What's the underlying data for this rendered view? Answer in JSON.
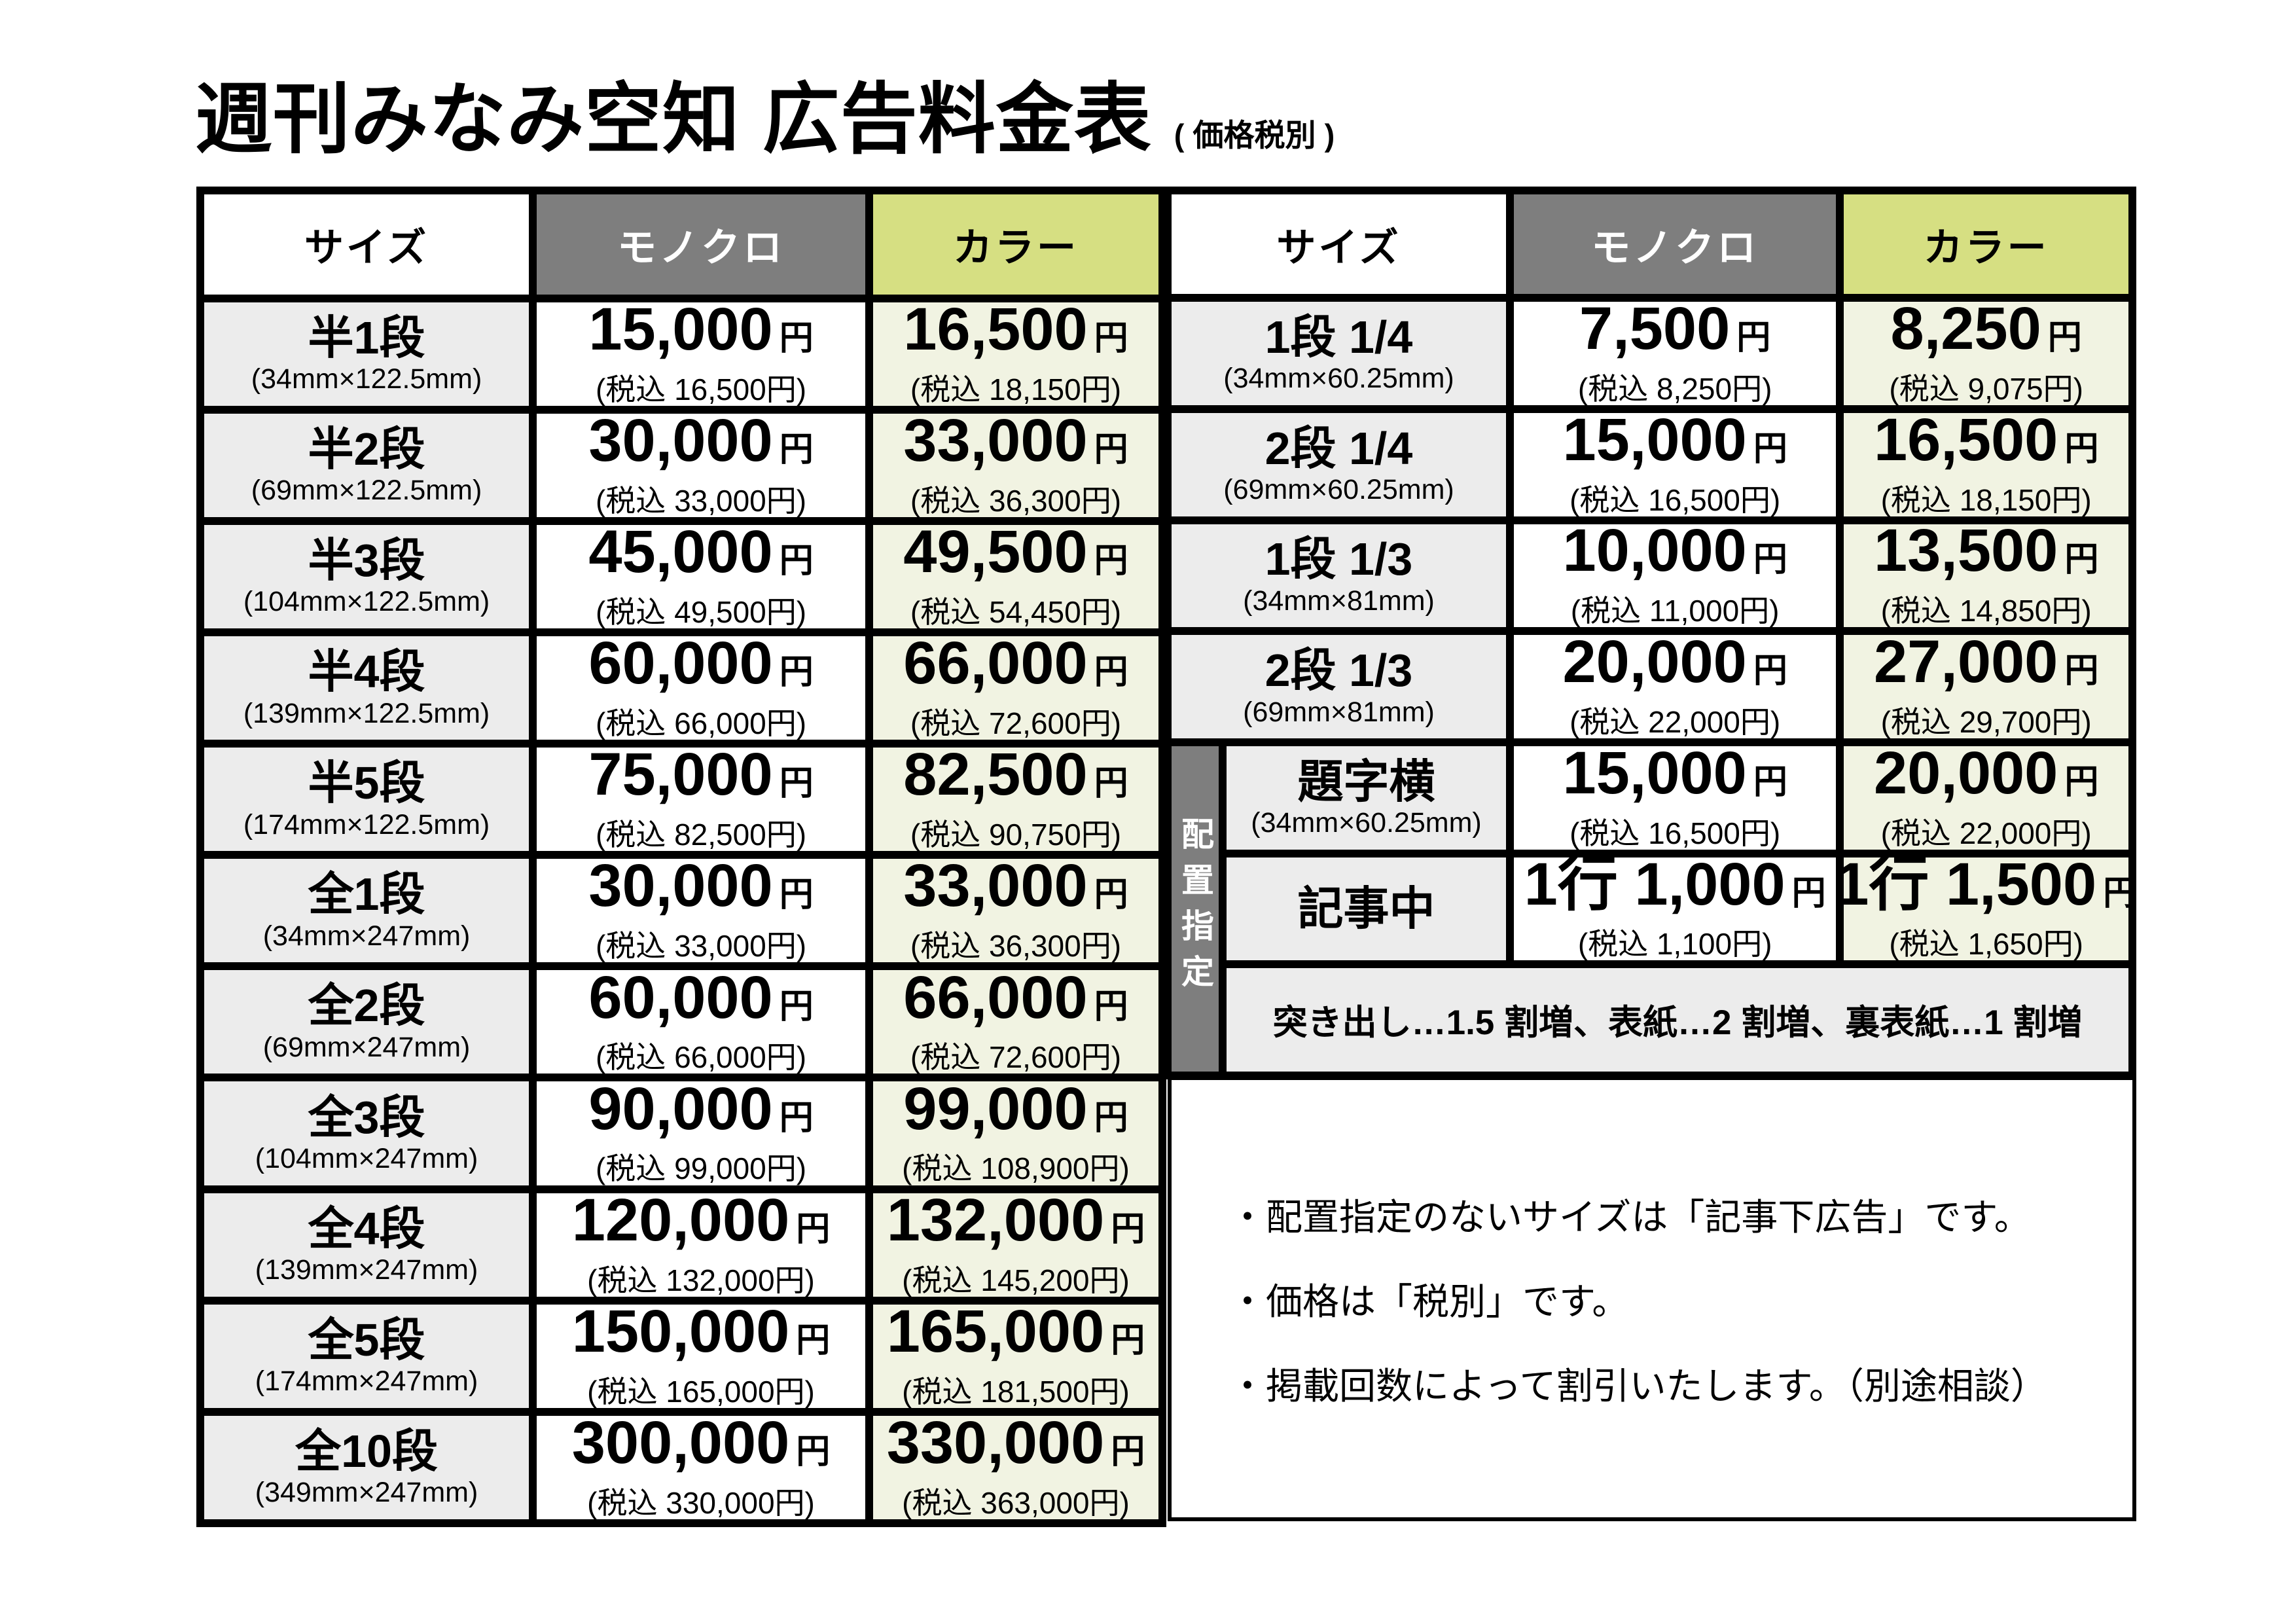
{
  "title": {
    "main": "週刊みなみ空知 広告料金表",
    "suffix": "( 価格税別 )"
  },
  "currency": "円",
  "columns": {
    "size": "サイズ",
    "mono": "モノクロ",
    "color": "カラー"
  },
  "left_table": {
    "rows": [
      {
        "name": "半1段",
        "dim": "(34mm×122.5mm)",
        "mono_amount": "15,000",
        "mono_tax": "(税込 16,500円)",
        "color_amount": "16,500",
        "color_tax": "(税込 18,150円)"
      },
      {
        "name": "半2段",
        "dim": "(69mm×122.5mm)",
        "mono_amount": "30,000",
        "mono_tax": "(税込 33,000円)",
        "color_amount": "33,000",
        "color_tax": "(税込 36,300円)"
      },
      {
        "name": "半3段",
        "dim": "(104mm×122.5mm)",
        "mono_amount": "45,000",
        "mono_tax": "(税込 49,500円)",
        "color_amount": "49,500",
        "color_tax": "(税込 54,450円)"
      },
      {
        "name": "半4段",
        "dim": "(139mm×122.5mm)",
        "mono_amount": "60,000",
        "mono_tax": "(税込 66,000円)",
        "color_amount": "66,000",
        "color_tax": "(税込 72,600円)"
      },
      {
        "name": "半5段",
        "dim": "(174mm×122.5mm)",
        "mono_amount": "75,000",
        "mono_tax": "(税込 82,500円)",
        "color_amount": "82,500",
        "color_tax": "(税込 90,750円)"
      },
      {
        "name": "全1段",
        "dim": "(34mm×247mm)",
        "mono_amount": "30,000",
        "mono_tax": "(税込 33,000円)",
        "color_amount": "33,000",
        "color_tax": "(税込 36,300円)"
      },
      {
        "name": "全2段",
        "dim": "(69mm×247mm)",
        "mono_amount": "60,000",
        "mono_tax": "(税込 66,000円)",
        "color_amount": "66,000",
        "color_tax": "(税込 72,600円)"
      },
      {
        "name": "全3段",
        "dim": "(104mm×247mm)",
        "mono_amount": "90,000",
        "mono_tax": "(税込 99,000円)",
        "color_amount": "99,000",
        "color_tax": "(税込 108,900円)"
      },
      {
        "name": "全4段",
        "dim": "(139mm×247mm)",
        "mono_amount": "120,000",
        "mono_tax": "(税込 132,000円)",
        "color_amount": "132,000",
        "color_tax": "(税込 145,200円)"
      },
      {
        "name": "全5段",
        "dim": "(174mm×247mm)",
        "mono_amount": "150,000",
        "mono_tax": "(税込 165,000円)",
        "color_amount": "165,000",
        "color_tax": "(税込 181,500円)"
      },
      {
        "name": "全10段",
        "dim": "(349mm×247mm)",
        "mono_amount": "300,000",
        "mono_tax": "(税込 330,000円)",
        "color_amount": "330,000",
        "color_tax": "(税込 363,000円)"
      }
    ]
  },
  "right_table": {
    "rows": [
      {
        "name": "1段 1/4",
        "dim": "(34mm×60.25mm)",
        "mono_amount": "7,500",
        "mono_tax": "(税込 8,250円)",
        "color_amount": "8,250",
        "color_tax": "(税込 9,075円)"
      },
      {
        "name": "2段 1/4",
        "dim": "(69mm×60.25mm)",
        "mono_amount": "15,000",
        "mono_tax": "(税込 16,500円)",
        "color_amount": "16,500",
        "color_tax": "(税込 18,150円)"
      },
      {
        "name": "1段 1/3",
        "dim": "(34mm×81mm)",
        "mono_amount": "10,000",
        "mono_tax": "(税込 11,000円)",
        "color_amount": "13,500",
        "color_tax": "(税込 14,850円)"
      },
      {
        "name": "2段 1/3",
        "dim": "(69mm×81mm)",
        "mono_amount": "20,000",
        "mono_tax": "(税込 22,000円)",
        "color_amount": "27,000",
        "color_tax": "(税込 29,700円)"
      }
    ]
  },
  "placement": {
    "label": "配置指定",
    "rows": [
      {
        "name": "題字横",
        "dim": "(34mm×60.25mm)",
        "mono_amount": "15,000",
        "mono_tax": "(税込 16,500円)",
        "color_amount": "20,000",
        "color_tax": "(税込 22,000円)"
      },
      {
        "name": "記事中",
        "dim": "",
        "mono_amount": "1行 1,000",
        "mono_tax": "(税込 1,100円)",
        "color_amount": "1行 1,500",
        "color_tax": "(税込 1,650円)"
      }
    ],
    "surcharge_note": "突き出し…1.5 割増、表紙…2 割増、裏表紙…1 割増"
  },
  "notes": {
    "line1": "・配置指定のないサイズは「記事下広告」です。",
    "line2": "・価格は「税別」です。",
    "line3": "・掲載回数によって割引いたします。（別途相談）"
  },
  "colors": {
    "border": "#000000",
    "header_gray": "#7e7e7e",
    "header_green": "#d6df82",
    "row_gray": "#ececec",
    "row_green": "#f1f3e2"
  }
}
